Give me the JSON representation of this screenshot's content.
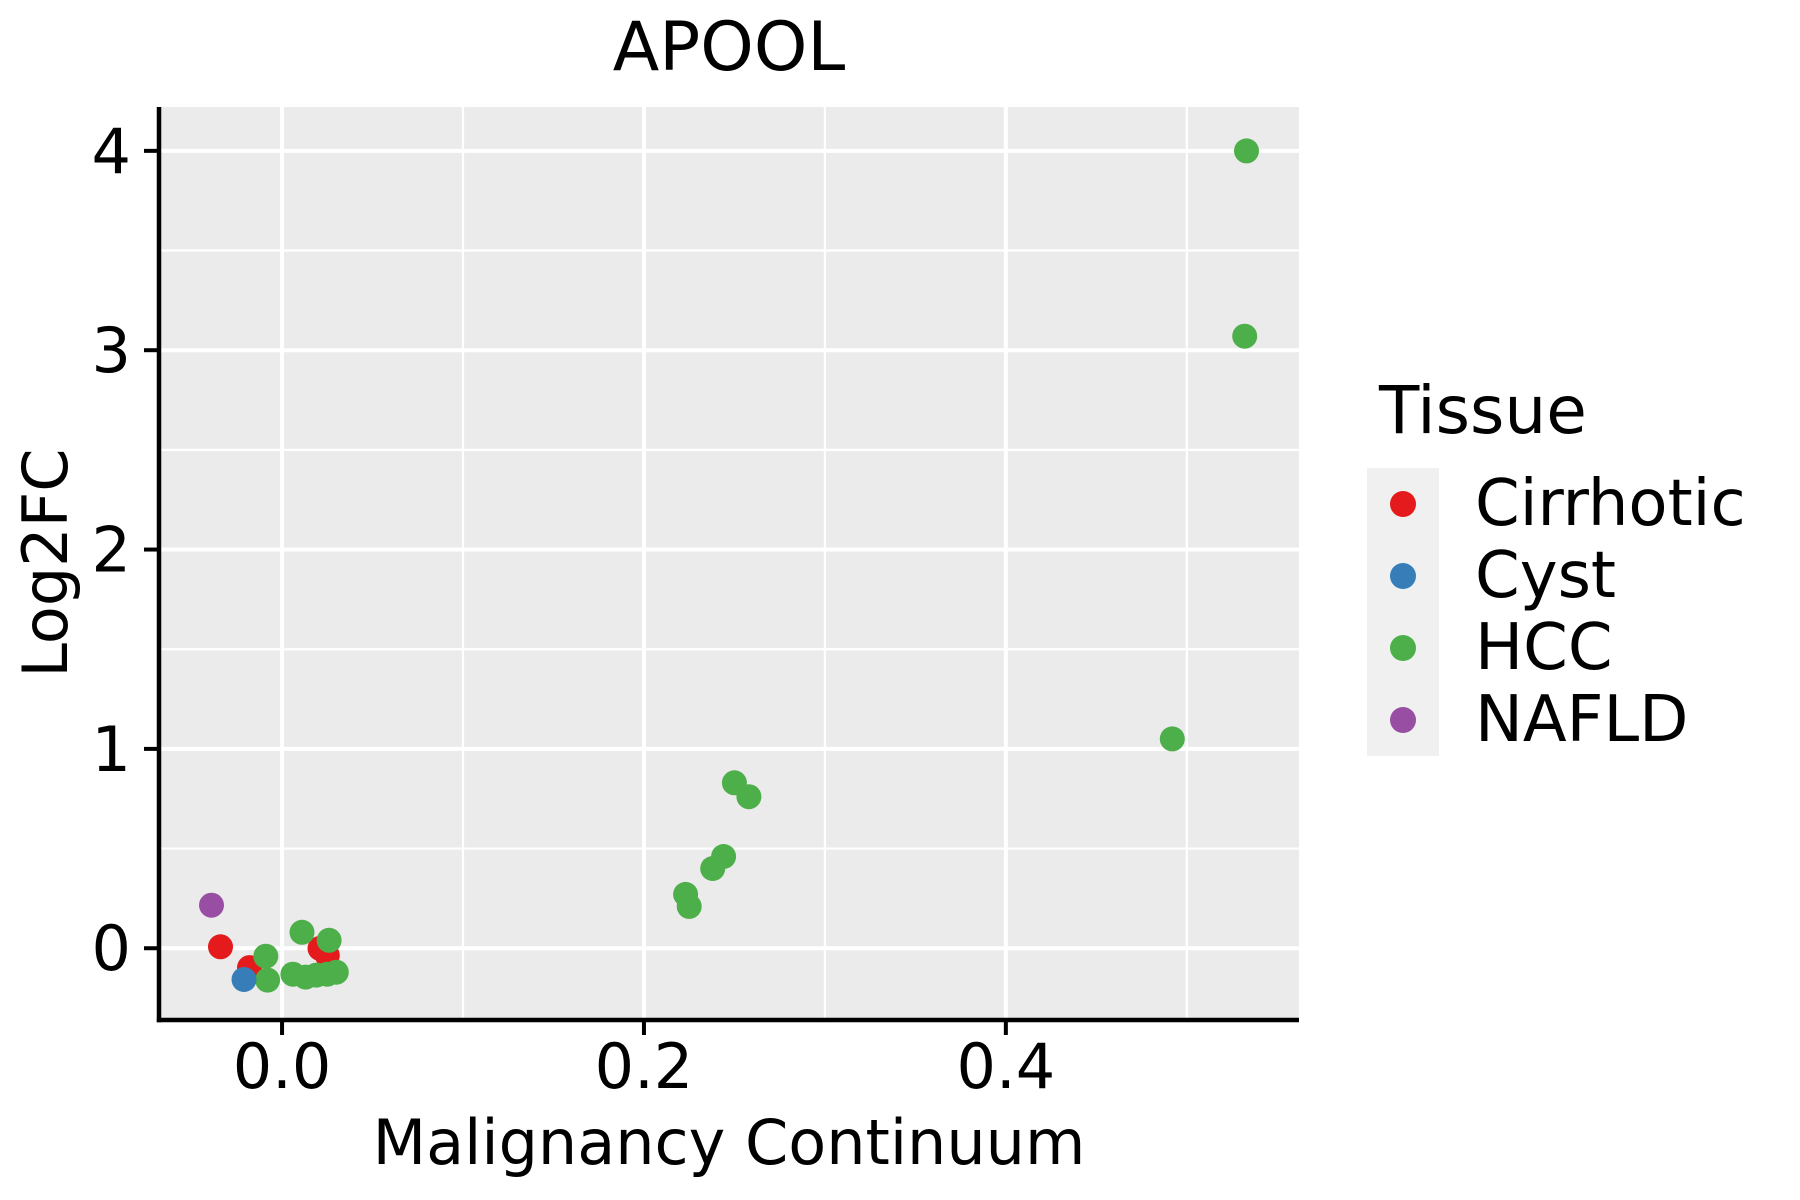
{
  "figure": {
    "title": "APOOL"
  },
  "chart_data": {
    "type": "scatter",
    "title": "APOOL",
    "xlabel": "Malignancy Continuum",
    "ylabel": "Log2FC",
    "xlim": [
      -0.068,
      0.562
    ],
    "ylim": [
      -0.36,
      4.22
    ],
    "x_ticks": [
      {
        "v": 0.0,
        "label": "0.0"
      },
      {
        "v": 0.2,
        "label": "0.2"
      },
      {
        "v": 0.4,
        "label": "0.4"
      }
    ],
    "y_ticks": [
      {
        "v": 0,
        "label": "0"
      },
      {
        "v": 1,
        "label": "1"
      },
      {
        "v": 2,
        "label": "2"
      },
      {
        "v": 3,
        "label": "3"
      },
      {
        "v": 4,
        "label": "4"
      }
    ],
    "x_minor_gridlines": [
      0.1,
      0.3,
      0.5
    ],
    "y_minor_gridlines": [
      0.5,
      1.5,
      2.5,
      3.5
    ],
    "grid": "on",
    "legend_position": "right",
    "panel_background": "#EBEBEB",
    "gridline_color": "#FFFFFF",
    "axis_color": "#000000",
    "point_radius_px": 12.5,
    "series": [
      {
        "name": "Cirrhotic",
        "color": "#E41A1C",
        "points": [
          [
            -0.034,
            0.007
          ],
          [
            -0.018,
            -0.097
          ],
          [
            0.021,
            -0.001
          ],
          [
            0.025,
            -0.036
          ]
        ]
      },
      {
        "name": "HCC",
        "color": "#4DAF4A",
        "points": [
          [
            0.533,
            4.0
          ],
          [
            0.532,
            3.07
          ],
          [
            0.492,
            1.05
          ],
          [
            0.25,
            0.83
          ],
          [
            0.258,
            0.76
          ],
          [
            0.244,
            0.46
          ],
          [
            0.238,
            0.4
          ],
          [
            0.223,
            0.27
          ],
          [
            0.225,
            0.21
          ],
          [
            0.011,
            0.08
          ],
          [
            0.026,
            0.04
          ],
          [
            -0.009,
            -0.04
          ],
          [
            -0.008,
            -0.16
          ],
          [
            0.006,
            -0.13
          ],
          [
            0.013,
            -0.145
          ],
          [
            0.019,
            -0.135
          ],
          [
            0.025,
            -0.13
          ],
          [
            0.03,
            -0.12
          ]
        ]
      },
      {
        "name": "Cyst",
        "color": "#377EB8",
        "points": [
          [
            -0.021,
            -0.157
          ]
        ]
      },
      {
        "name": "NAFLD",
        "color": "#984EA3",
        "points": [
          [
            -0.039,
            0.216
          ]
        ]
      }
    ]
  },
  "legend": {
    "title": "Tissue",
    "key_background": "#F0F0F0",
    "items": [
      {
        "label": "Cirrhotic",
        "color": "#E41A1C"
      },
      {
        "label": "Cyst",
        "color": "#377EB8"
      },
      {
        "label": "HCC",
        "color": "#4DAF4A"
      },
      {
        "label": "NAFLD",
        "color": "#984EA3"
      }
    ]
  }
}
